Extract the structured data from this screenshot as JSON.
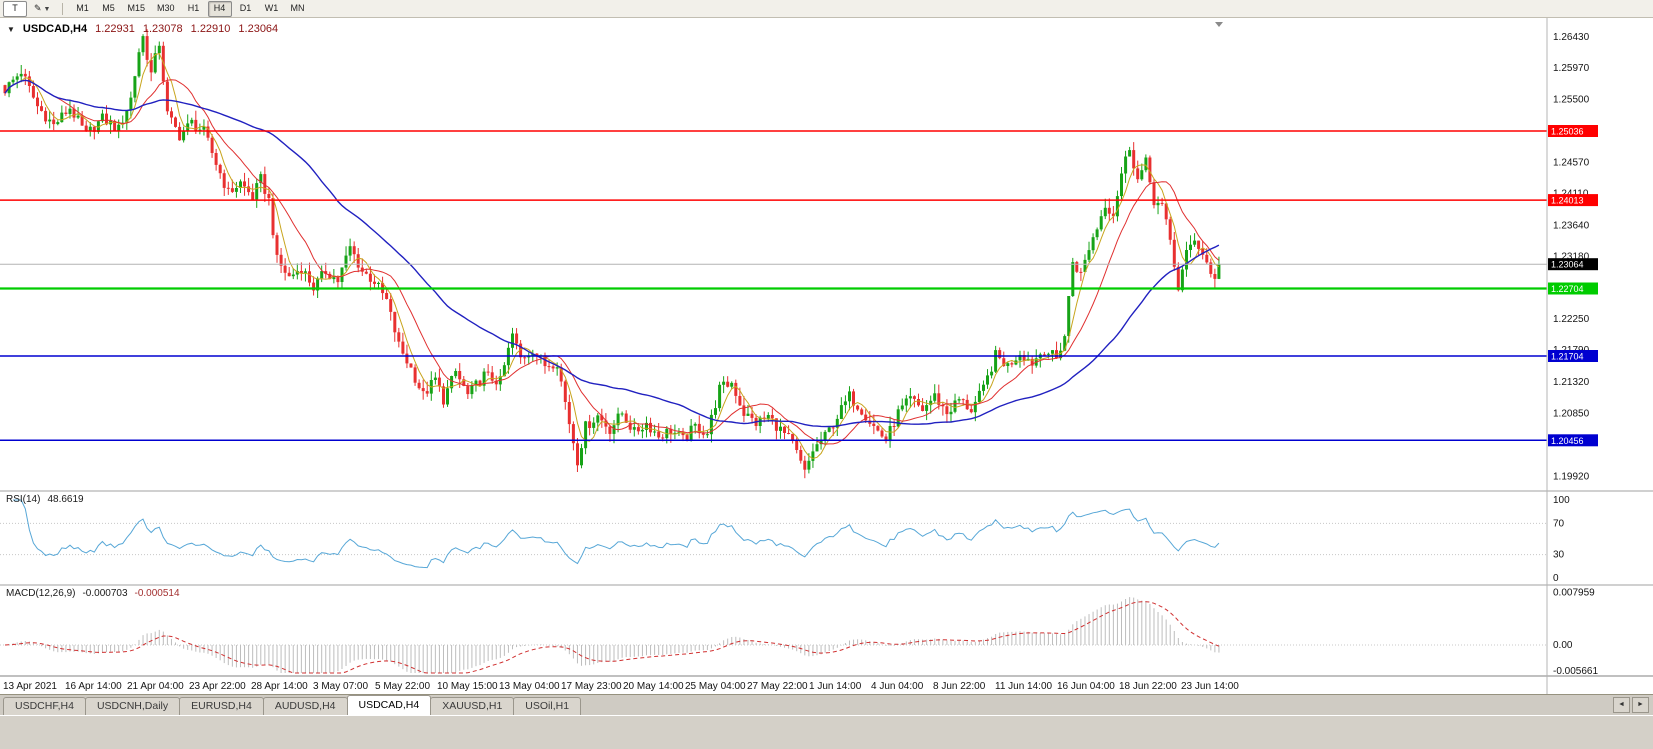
{
  "toolbar": {
    "chart_type_button": "T",
    "timeframes": [
      "M1",
      "M5",
      "M15",
      "M30",
      "H1",
      "H4",
      "D1",
      "W1",
      "MN"
    ],
    "active_timeframe": "H4"
  },
  "chart": {
    "title": "USDCAD,H4",
    "ohlc": {
      "open": "1.22931",
      "high": "1.23078",
      "low": "1.22910",
      "close": "1.23064"
    }
  },
  "chart_data": {
    "type": "candlestick",
    "symbol": "USDCAD",
    "timeframe": "H4",
    "visible_range": {
      "price_top": 1.2668,
      "price_bottom": 1.1975
    },
    "price_ticks": [
      "1.26430",
      "1.25970",
      "1.25500",
      "1.24570",
      "1.24110",
      "1.23640",
      "1.23180",
      "1.22250",
      "1.21790",
      "1.21320",
      "1.20850",
      "1.19920"
    ],
    "levels": [
      {
        "label": "1.25036",
        "price": 1.25036,
        "color": "#ff0000",
        "line_width": 1.5,
        "type": "resistance"
      },
      {
        "label": "1.24013",
        "price": 1.24013,
        "color": "#ff0000",
        "line_width": 1.5,
        "type": "resistance"
      },
      {
        "label": "1.22704",
        "price": 1.22704,
        "color": "#00cc00",
        "line_width": 2.2,
        "type": "support"
      },
      {
        "label": "1.21704",
        "price": 1.21704,
        "color": "#0000d0",
        "line_width": 1.5,
        "type": "support"
      },
      {
        "label": "1.20456",
        "price": 1.20456,
        "color": "#0000d0",
        "line_width": 1.5,
        "type": "support"
      }
    ],
    "current_price": {
      "label": "1.23064",
      "price": 1.23064
    },
    "candle_count": 300,
    "close_anchors": [
      [
        0,
        1.2565
      ],
      [
        4,
        1.2592
      ],
      [
        8,
        1.254
      ],
      [
        12,
        1.2512
      ],
      [
        16,
        1.2538
      ],
      [
        20,
        1.2498
      ],
      [
        24,
        1.2522
      ],
      [
        28,
        1.2506
      ],
      [
        31,
        1.2552
      ],
      [
        33,
        1.2622
      ],
      [
        34,
        1.2643
      ],
      [
        36,
        1.2588
      ],
      [
        38,
        1.2634
      ],
      [
        40,
        1.2528
      ],
      [
        43,
        1.2497
      ],
      [
        46,
        1.2516
      ],
      [
        49,
        1.2502
      ],
      [
        52,
        1.2456
      ],
      [
        55,
        1.2412
      ],
      [
        58,
        1.2427
      ],
      [
        61,
        1.2406
      ],
      [
        63,
        1.2432
      ],
      [
        65,
        1.2401
      ],
      [
        67,
        1.2312
      ],
      [
        70,
        1.2287
      ],
      [
        73,
        1.2302
      ],
      [
        76,
        1.2272
      ],
      [
        79,
        1.2296
      ],
      [
        82,
        1.2282
      ],
      [
        85,
        1.2331
      ],
      [
        88,
        1.2296
      ],
      [
        91,
        1.2281
      ],
      [
        94,
        1.2252
      ],
      [
        97,
        1.2186
      ],
      [
        100,
        1.2152
      ],
      [
        103,
        1.2112
      ],
      [
        106,
        1.2136
      ],
      [
        108,
        1.2106
      ],
      [
        111,
        1.2147
      ],
      [
        114,
        1.2112
      ],
      [
        118,
        1.2142
      ],
      [
        122,
        1.2132
      ],
      [
        125,
        1.2202
      ],
      [
        127,
        1.2167
      ],
      [
        130,
        1.2181
      ],
      [
        133,
        1.2157
      ],
      [
        136,
        1.2162
      ],
      [
        139,
        1.2072
      ],
      [
        141,
        1.2016
      ],
      [
        143,
        1.2066
      ],
      [
        146,
        1.2082
      ],
      [
        149,
        1.2062
      ],
      [
        152,
        1.2086
      ],
      [
        155,
        1.2057
      ],
      [
        158,
        1.2071
      ],
      [
        161,
        1.2052
      ],
      [
        164,
        1.2061
      ],
      [
        167,
        1.2046
      ],
      [
        170,
        1.2066
      ],
      [
        173,
        1.2056
      ],
      [
        176,
        1.2122
      ],
      [
        179,
        1.2131
      ],
      [
        182,
        1.2086
      ],
      [
        185,
        1.2071
      ],
      [
        188,
        1.2081
      ],
      [
        191,
        1.2061
      ],
      [
        194,
        1.2041
      ],
      [
        197,
        1.1997
      ],
      [
        199,
        1.2031
      ],
      [
        202,
        1.2051
      ],
      [
        205,
        1.2081
      ],
      [
        208,
        1.2111
      ],
      [
        211,
        1.2091
      ],
      [
        214,
        1.2066
      ],
      [
        217,
        1.2046
      ],
      [
        220,
        1.2086
      ],
      [
        223,
        1.2106
      ],
      [
        226,
        1.2091
      ],
      [
        229,
        1.2111
      ],
      [
        232,
        1.2086
      ],
      [
        235,
        1.2106
      ],
      [
        238,
        1.2091
      ],
      [
        241,
        1.2121
      ],
      [
        244,
        1.2171
      ],
      [
        247,
        1.2156
      ],
      [
        250,
        1.2176
      ],
      [
        253,
        1.2161
      ],
      [
        256,
        1.2181
      ],
      [
        259,
        1.2166
      ],
      [
        261,
        1.2201
      ],
      [
        263,
        1.2311
      ],
      [
        265,
        1.2291
      ],
      [
        267,
        1.2331
      ],
      [
        269,
        1.2361
      ],
      [
        271,
        1.2396
      ],
      [
        273,
        1.2381
      ],
      [
        275,
        1.2441
      ],
      [
        277,
        1.2481
      ],
      [
        279,
        1.2431
      ],
      [
        281,
        1.2456
      ],
      [
        283,
        1.2401
      ],
      [
        285,
        1.2391
      ],
      [
        287,
        1.2341
      ],
      [
        289,
        1.2271
      ],
      [
        291,
        1.2321
      ],
      [
        293,
        1.2346
      ],
      [
        295,
        1.2321
      ],
      [
        297,
        1.2296
      ],
      [
        298,
        1.2281
      ],
      [
        299,
        1.23064
      ]
    ],
    "x_labels": [
      "13 Apr 2021",
      "16 Apr 14:00",
      "21 Apr 04:00",
      "23 Apr 22:00",
      "28 Apr 14:00",
      "3 May 07:00",
      "5 May 22:00",
      "10 May 15:00",
      "13 May 04:00",
      "17 May 23:00",
      "20 May 14:00",
      "25 May 04:00",
      "27 May 22:00",
      "1 Jun 14:00",
      "4 Jun 04:00",
      "8 Jun 22:00",
      "11 Jun 14:00",
      "16 Jun 04:00",
      "18 Jun 22:00",
      "23 Jun 14:00"
    ],
    "indicators": {
      "rsi": {
        "label": "RSI(14)",
        "value": "48.6619",
        "ticks": [
          "100",
          "70",
          "30",
          "0"
        ]
      },
      "macd": {
        "label": "MACD(12,26,9)",
        "main_value": "-0.000703",
        "signal_value": "-0.000514",
        "ticks": [
          "0.007959",
          "0.00",
          "-0.005661"
        ]
      }
    }
  },
  "colors": {
    "up": "#17a317",
    "down": "#e83030",
    "ma_fast": "#c8a51e",
    "ma_medium": "#e03030",
    "ma_slow": "#2121c0",
    "rsi_line": "#57a7d7",
    "macd_hist": "#bdbdbd",
    "macd_signal": "#d03030",
    "current_line": "#b4b4b4"
  },
  "bottom_tabs": {
    "tabs": [
      {
        "label": "USDCHF,H4"
      },
      {
        "label": "USDCNH,Daily"
      },
      {
        "label": "EURUSD,H4"
      },
      {
        "label": "AUDUSD,H4"
      },
      {
        "label": "USDCAD,H4",
        "active": true
      },
      {
        "label": "XAUUSD,H1"
      },
      {
        "label": "USOil,H1"
      }
    ],
    "scroll_left": "◄",
    "scroll_right": "►"
  }
}
